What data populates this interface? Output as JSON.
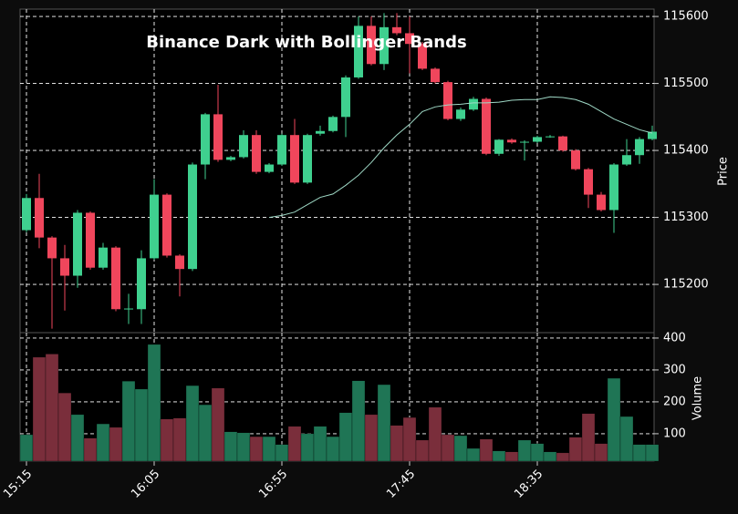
{
  "chart_data": {
    "type": "candlestick",
    "title": "Binance Dark with Bollinger Bands",
    "categories": [
      "15:15",
      null,
      null,
      null,
      null,
      null,
      null,
      null,
      null,
      null,
      "16:05",
      null,
      null,
      null,
      null,
      null,
      null,
      null,
      null,
      null,
      "16:55",
      null,
      null,
      null,
      null,
      null,
      null,
      null,
      null,
      null,
      "17:45",
      null,
      null,
      null,
      null,
      null,
      null,
      null,
      null,
      null,
      "18:35",
      null,
      null,
      null,
      null,
      null,
      null,
      null,
      null,
      null
    ],
    "open": [
      115281,
      115329,
      115270,
      115239,
      115213,
      115307,
      115225,
      115255,
      115163,
      115163,
      115239,
      115334,
      115243,
      115223,
      115379,
      115454,
      115386,
      115390,
      115423,
      115368,
      115379,
      115423,
      115352,
      115425,
      115429,
      115450,
      115509,
      115586,
      115529,
      115584,
      115575,
      115559,
      115522,
      115502,
      115447,
      115461,
      115477,
      115395,
      115416,
      115413,
      115413,
      115420,
      115421,
      115400,
      115372,
      115334,
      115311,
      115379,
      115393,
      115417
    ],
    "high": [
      115335,
      115365,
      115272,
      115259,
      115311,
      115309,
      115262,
      115257,
      115186,
      115251,
      115357,
      115336,
      115245,
      115382,
      115456,
      115498,
      115392,
      115430,
      115430,
      115381,
      115425,
      115447,
      115425,
      115437,
      115452,
      115512,
      115600,
      115600,
      115605,
      115605,
      115600,
      115562,
      115524,
      115504,
      115464,
      115480,
      115479,
      115417,
      115418,
      115415,
      115422,
      115423,
      115422,
      115402,
      115374,
      115338,
      115381,
      115417,
      115420,
      115437
    ],
    "low": [
      115278,
      115254,
      115134,
      115161,
      115195,
      115222,
      115222,
      115160,
      115141,
      115141,
      115237,
      115240,
      115182,
      115220,
      115357,
      115383,
      115384,
      115388,
      115365,
      115366,
      115377,
      115350,
      115350,
      115422,
      115427,
      115420,
      115507,
      115527,
      115520,
      115572,
      115515,
      115520,
      115500,
      115445,
      115444,
      115459,
      115393,
      115392,
      115410,
      115385,
      115411,
      115419,
      115398,
      115370,
      115314,
      115309,
      115277,
      115377,
      115380,
      115415
    ],
    "close": [
      115329,
      115270,
      115239,
      115213,
      115307,
      115225,
      115255,
      115163,
      115164,
      115239,
      115334,
      115243,
      115223,
      115379,
      115454,
      115386,
      115390,
      115423,
      115368,
      115379,
      115423,
      115352,
      115423,
      115429,
      115450,
      115509,
      115586,
      115529,
      115584,
      115575,
      115559,
      115522,
      115502,
      115447,
      115461,
      115477,
      115395,
      115416,
      115412,
      115413,
      115420,
      115421,
      115400,
      115372,
      115334,
      115311,
      115379,
      115393,
      115417,
      115428
    ],
    "up_color": "#3fd08f",
    "down_color": "#f0465c",
    "ylabel": "Price",
    "ylim": [
      115128,
      115611
    ],
    "yticks": [
      115200,
      115300,
      115400,
      115500,
      115600
    ],
    "grid": true,
    "line": {
      "color": "#9fd9c6",
      "values": [
        null,
        null,
        null,
        null,
        null,
        null,
        null,
        null,
        null,
        null,
        null,
        null,
        null,
        null,
        null,
        null,
        null,
        null,
        null,
        115300,
        115303,
        115308,
        115319,
        115330,
        115335,
        115348,
        115363,
        115382,
        115404,
        115423,
        115439,
        115458,
        115465,
        115468,
        115469,
        115471,
        115471,
        115472,
        115475,
        115476,
        115476,
        115480,
        115479,
        115476,
        115469,
        115458,
        115447,
        115439,
        115431,
        115426
      ]
    },
    "volume": {
      "ylabel": "Volume",
      "values": [
        97,
        340,
        350,
        228,
        160,
        86,
        131,
        120,
        265,
        240,
        380,
        146,
        149,
        251,
        191,
        243,
        106,
        103,
        91,
        91,
        66,
        123,
        100,
        123,
        91,
        166,
        266,
        160,
        254,
        126,
        151,
        80,
        183,
        97,
        94,
        54,
        83,
        46,
        43,
        80,
        69,
        43,
        40,
        89,
        163,
        69,
        274,
        154,
        66,
        66
      ],
      "ylim": [
        14,
        417
      ],
      "yticks": [
        100,
        200,
        300,
        400
      ],
      "up_color": "#1f7555",
      "down_color": "#7a2e3b"
    }
  }
}
